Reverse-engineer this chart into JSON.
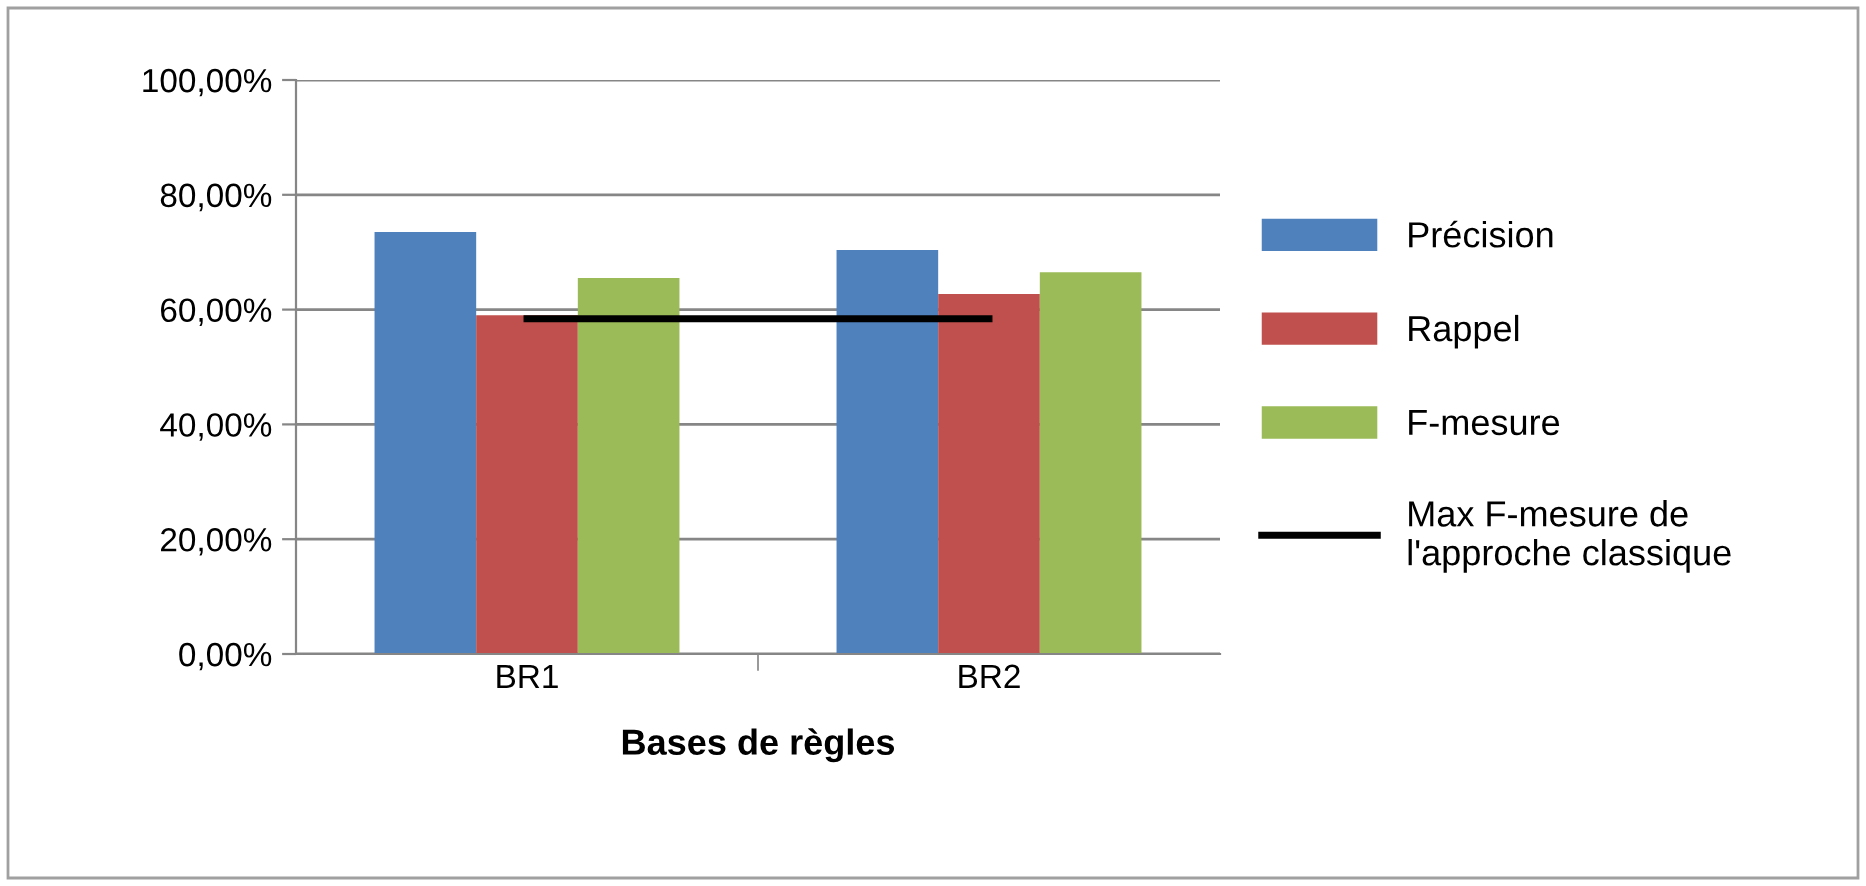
{
  "chart_data": {
    "type": "bar",
    "xlabel": "Bases de règles",
    "categories": [
      "BR1",
      "BR2"
    ],
    "series": [
      {
        "name": "Précision",
        "color": "#4f81bd",
        "values": [
          73.5,
          70.4
        ]
      },
      {
        "name": "Rappel",
        "color": "#c0504d",
        "values": [
          59.0,
          62.7
        ]
      },
      {
        "name": "F-mesure",
        "color": "#9bbb59",
        "values": [
          65.5,
          66.5
        ]
      },
      {
        "name": "Max F-mesure de\nl'approche classique",
        "type": "line",
        "color": "#000000",
        "values": [
          58.4,
          58.4
        ]
      }
    ],
    "ylim": [
      0,
      100
    ],
    "yticks": [
      {
        "value": 0,
        "label": "0,00%"
      },
      {
        "value": 20,
        "label": "20,00%"
      },
      {
        "value": 40,
        "label": "40,00%"
      },
      {
        "value": 60,
        "label": "60,00%"
      },
      {
        "value": 80,
        "label": "80,00%"
      },
      {
        "value": 100,
        "label": "100,00%"
      }
    ],
    "grid": "y",
    "legend": "right",
    "marker": "none"
  }
}
